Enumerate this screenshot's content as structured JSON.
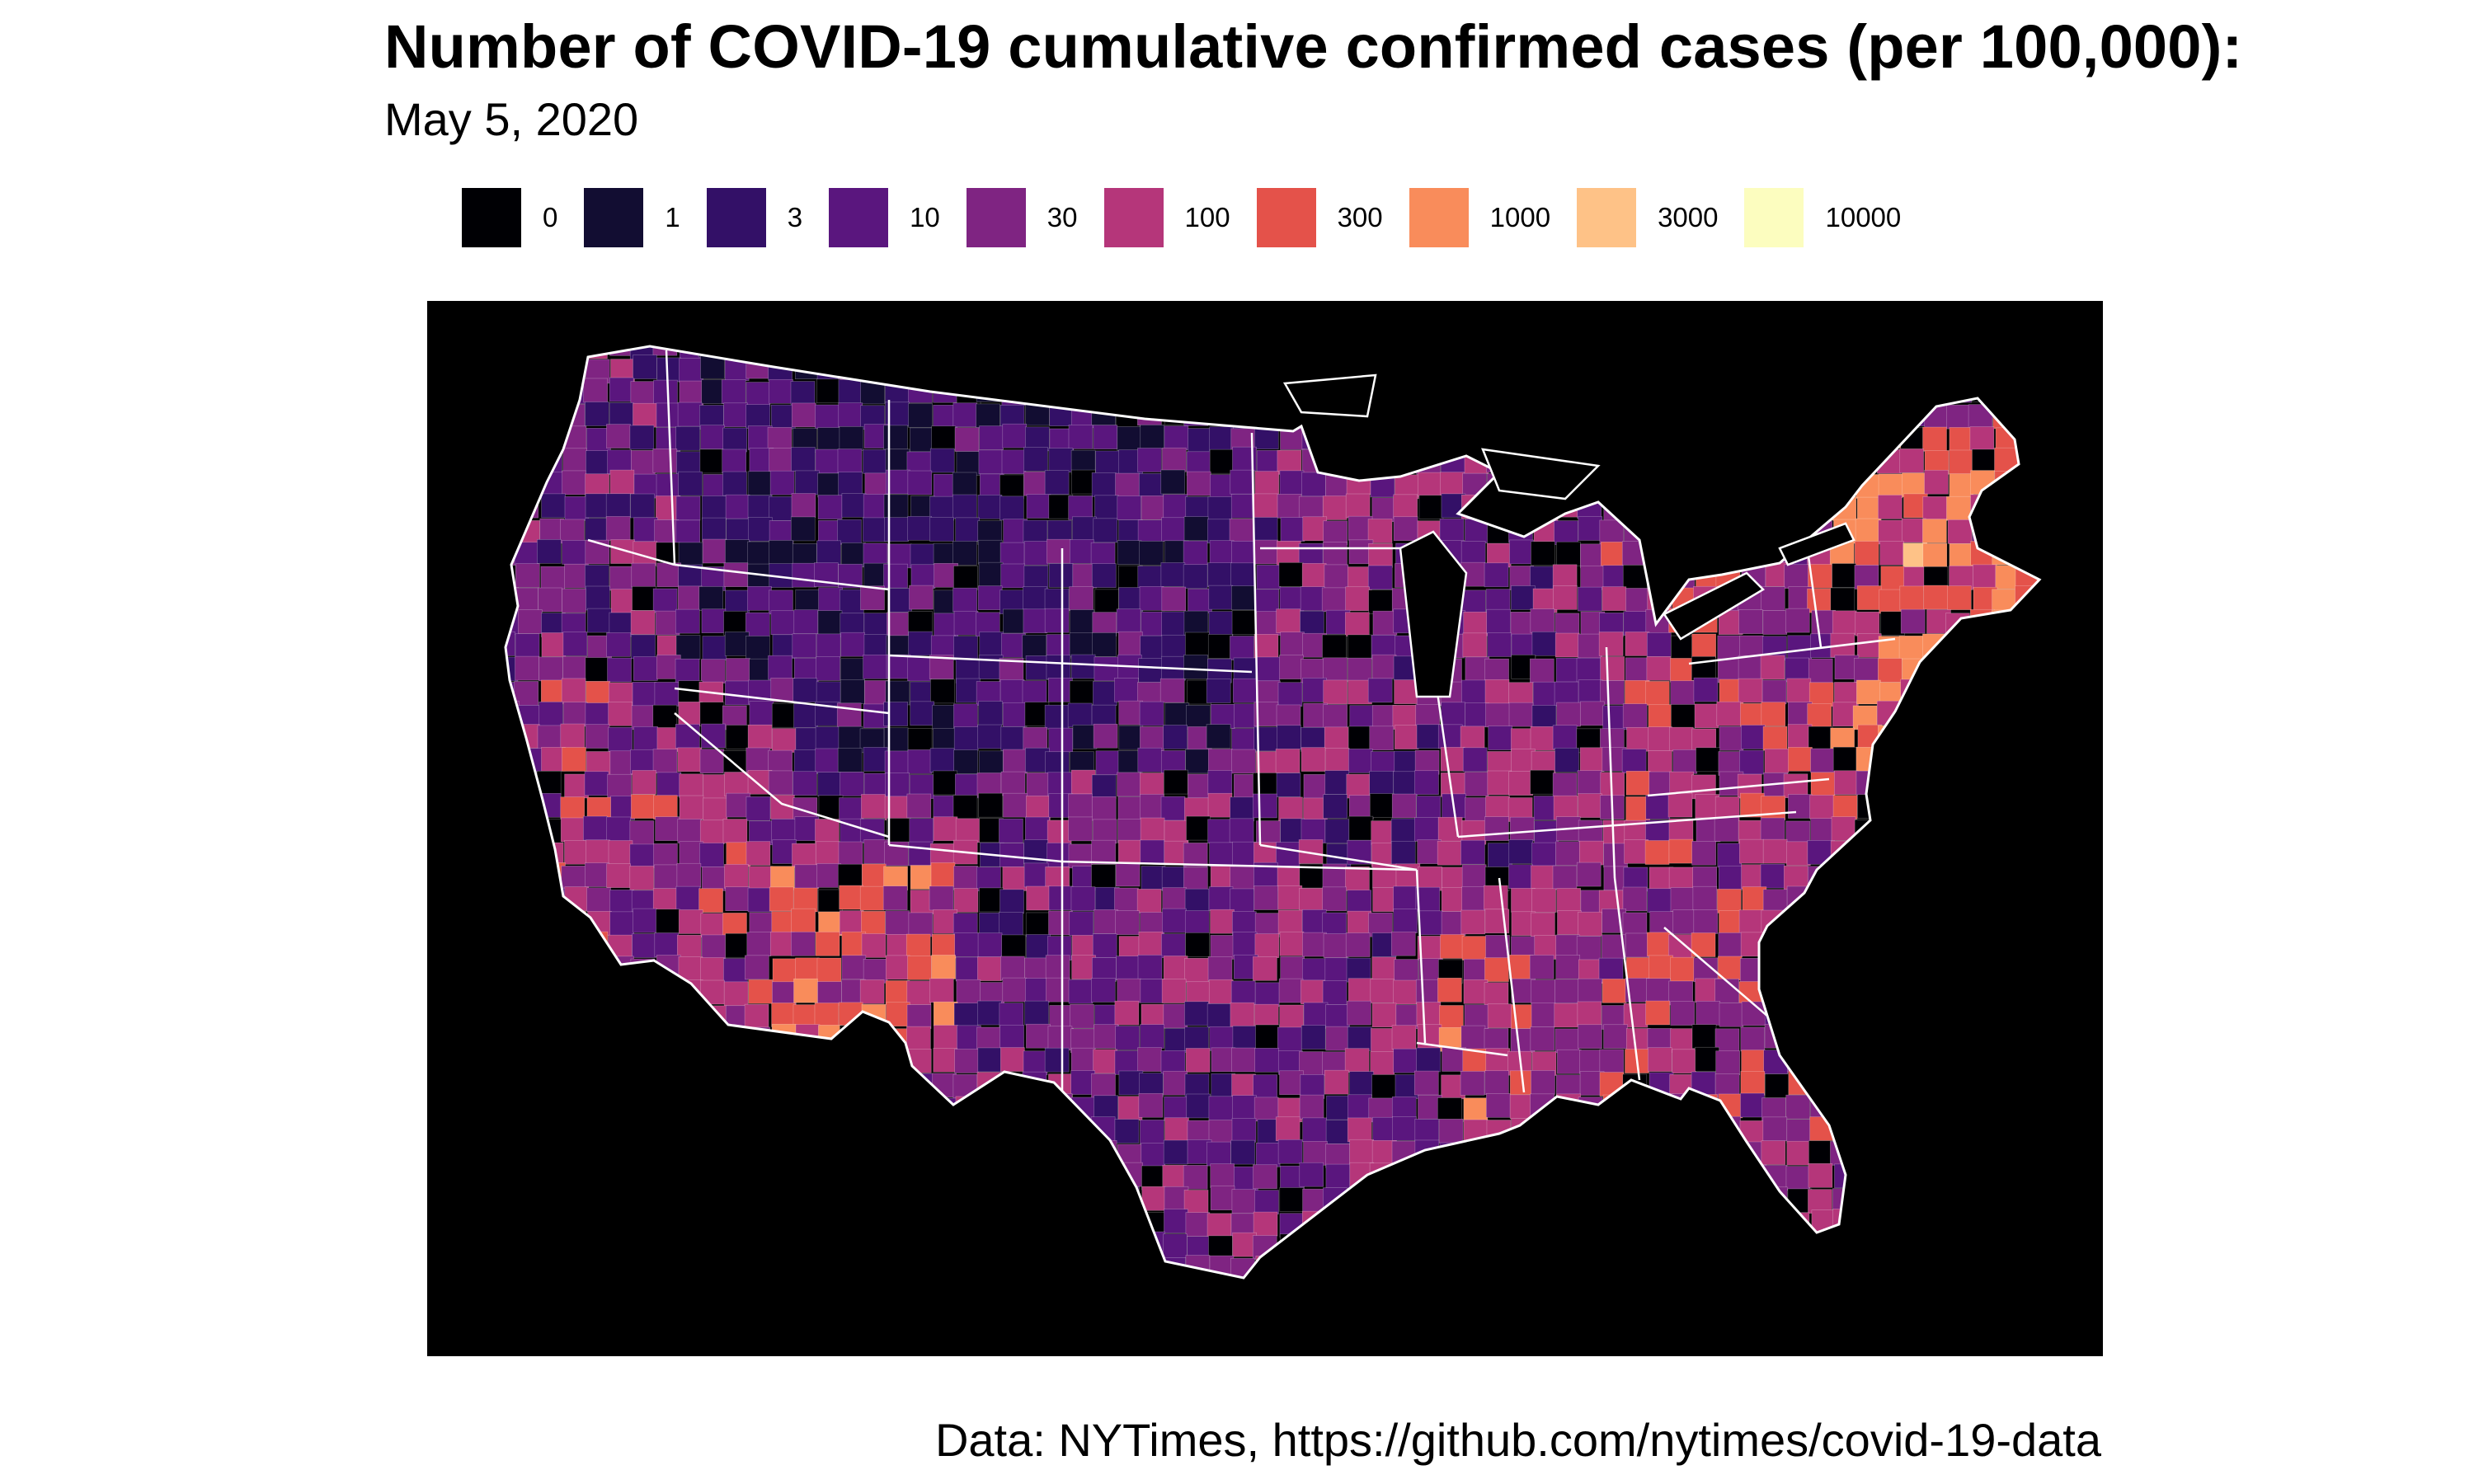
{
  "title": "Number of COVID-19 cumulative confirmed cases (per 100,000):",
  "subtitle": "May 5, 2020",
  "legend": {
    "items": [
      {
        "label": "0",
        "color": "#000004"
      },
      {
        "label": "1",
        "color": "#120D32"
      },
      {
        "label": "3",
        "color": "#331067"
      },
      {
        "label": "10",
        "color": "#5A167E"
      },
      {
        "label": "30",
        "color": "#7F2482"
      },
      {
        "label": "100",
        "color": "#B5367A"
      },
      {
        "label": "300",
        "color": "#E4524A"
      },
      {
        "label": "1000",
        "color": "#F98C5B"
      },
      {
        "label": "3000",
        "color": "#FEC287"
      },
      {
        "label": "10000",
        "color": "#FCFDBF"
      }
    ]
  },
  "map": {
    "background": "#000000",
    "border_color": "#FFFFFF"
  },
  "caption": "Data: NYTimes, https://github.com/nytimes/covid-19-data"
}
